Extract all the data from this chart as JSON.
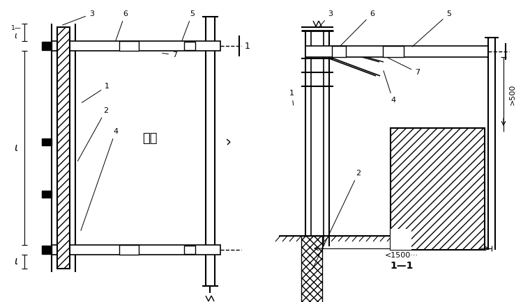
{
  "bg_color": "#ffffff",
  "line_color": "#000000",
  "fig_width": 7.6,
  "fig_height": 4.34,
  "labels": {
    "jiegou": "结构",
    "section": "1—1",
    "dim_1500": "<1500···",
    "dim_500": ">500"
  }
}
